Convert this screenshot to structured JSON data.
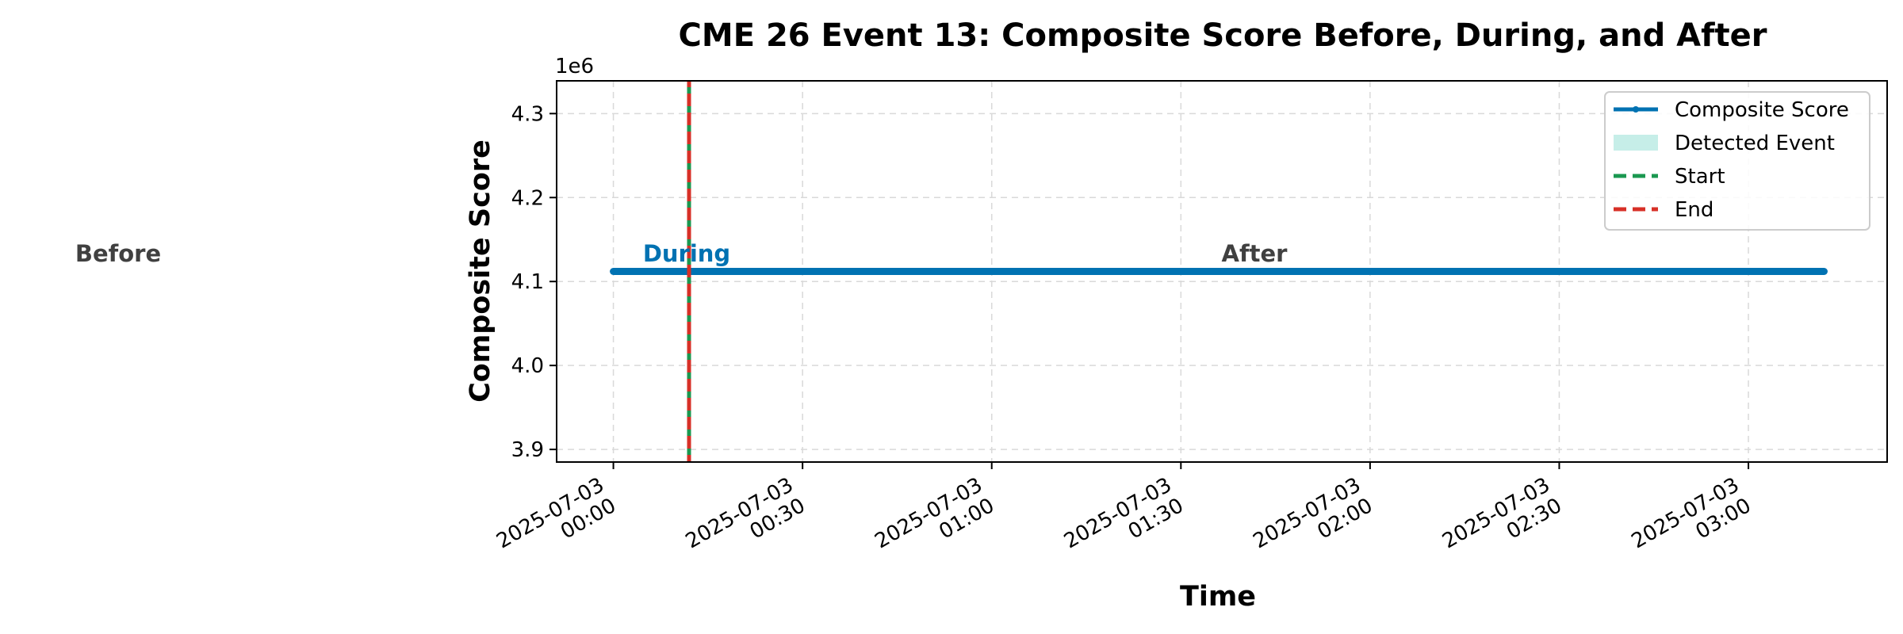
{
  "chart_data": {
    "type": "line",
    "title": "CME 26 Event 13: Composite Score Before, During, and After",
    "xlabel": "Time",
    "ylabel": "Composite Score",
    "y_offset_label": "1e6",
    "xlim": [
      "2025-07-02T23:51:00",
      "2025-07-03T03:22:00"
    ],
    "ylim": [
      3.885,
      4.339
    ],
    "y_scale_factor": 1000000,
    "yticks": [
      3.9,
      4.0,
      4.1,
      4.2,
      4.3
    ],
    "xticks": [
      {
        "time": "2025-07-03T00:00:00",
        "label": [
          "2025-07-03",
          "00:00"
        ]
      },
      {
        "time": "2025-07-03T00:30:00",
        "label": [
          "2025-07-03",
          "00:30"
        ]
      },
      {
        "time": "2025-07-03T01:00:00",
        "label": [
          "2025-07-03",
          "01:00"
        ]
      },
      {
        "time": "2025-07-03T01:30:00",
        "label": [
          "2025-07-03",
          "01:30"
        ]
      },
      {
        "time": "2025-07-03T02:00:00",
        "label": [
          "2025-07-03",
          "02:00"
        ]
      },
      {
        "time": "2025-07-03T02:30:00",
        "label": [
          "2025-07-03",
          "02:30"
        ]
      },
      {
        "time": "2025-07-03T03:00:00",
        "label": [
          "2025-07-03",
          "03:00"
        ]
      }
    ],
    "grid": true,
    "legend_position": "top-right",
    "series": [
      {
        "name": "Composite Score",
        "color": "#0072B2",
        "x": [
          "2025-07-03T00:00:00",
          "2025-07-03T03:12:00"
        ],
        "y": [
          4.112,
          4.112
        ]
      }
    ],
    "event": {
      "start": "2025-07-03T00:12:00",
      "end": "2025-07-03T00:12:00",
      "start_label": "Start",
      "end_label": "End",
      "start_color": "#1a9850",
      "end_color": "#d73027",
      "band_label": "Detected Event",
      "band_color": "#c6eee8"
    },
    "phase_labels": [
      {
        "text": "Before",
        "color": "#404040"
      },
      {
        "text": "During",
        "color": "#0072B2"
      },
      {
        "text": "After",
        "color": "#404040"
      }
    ]
  }
}
